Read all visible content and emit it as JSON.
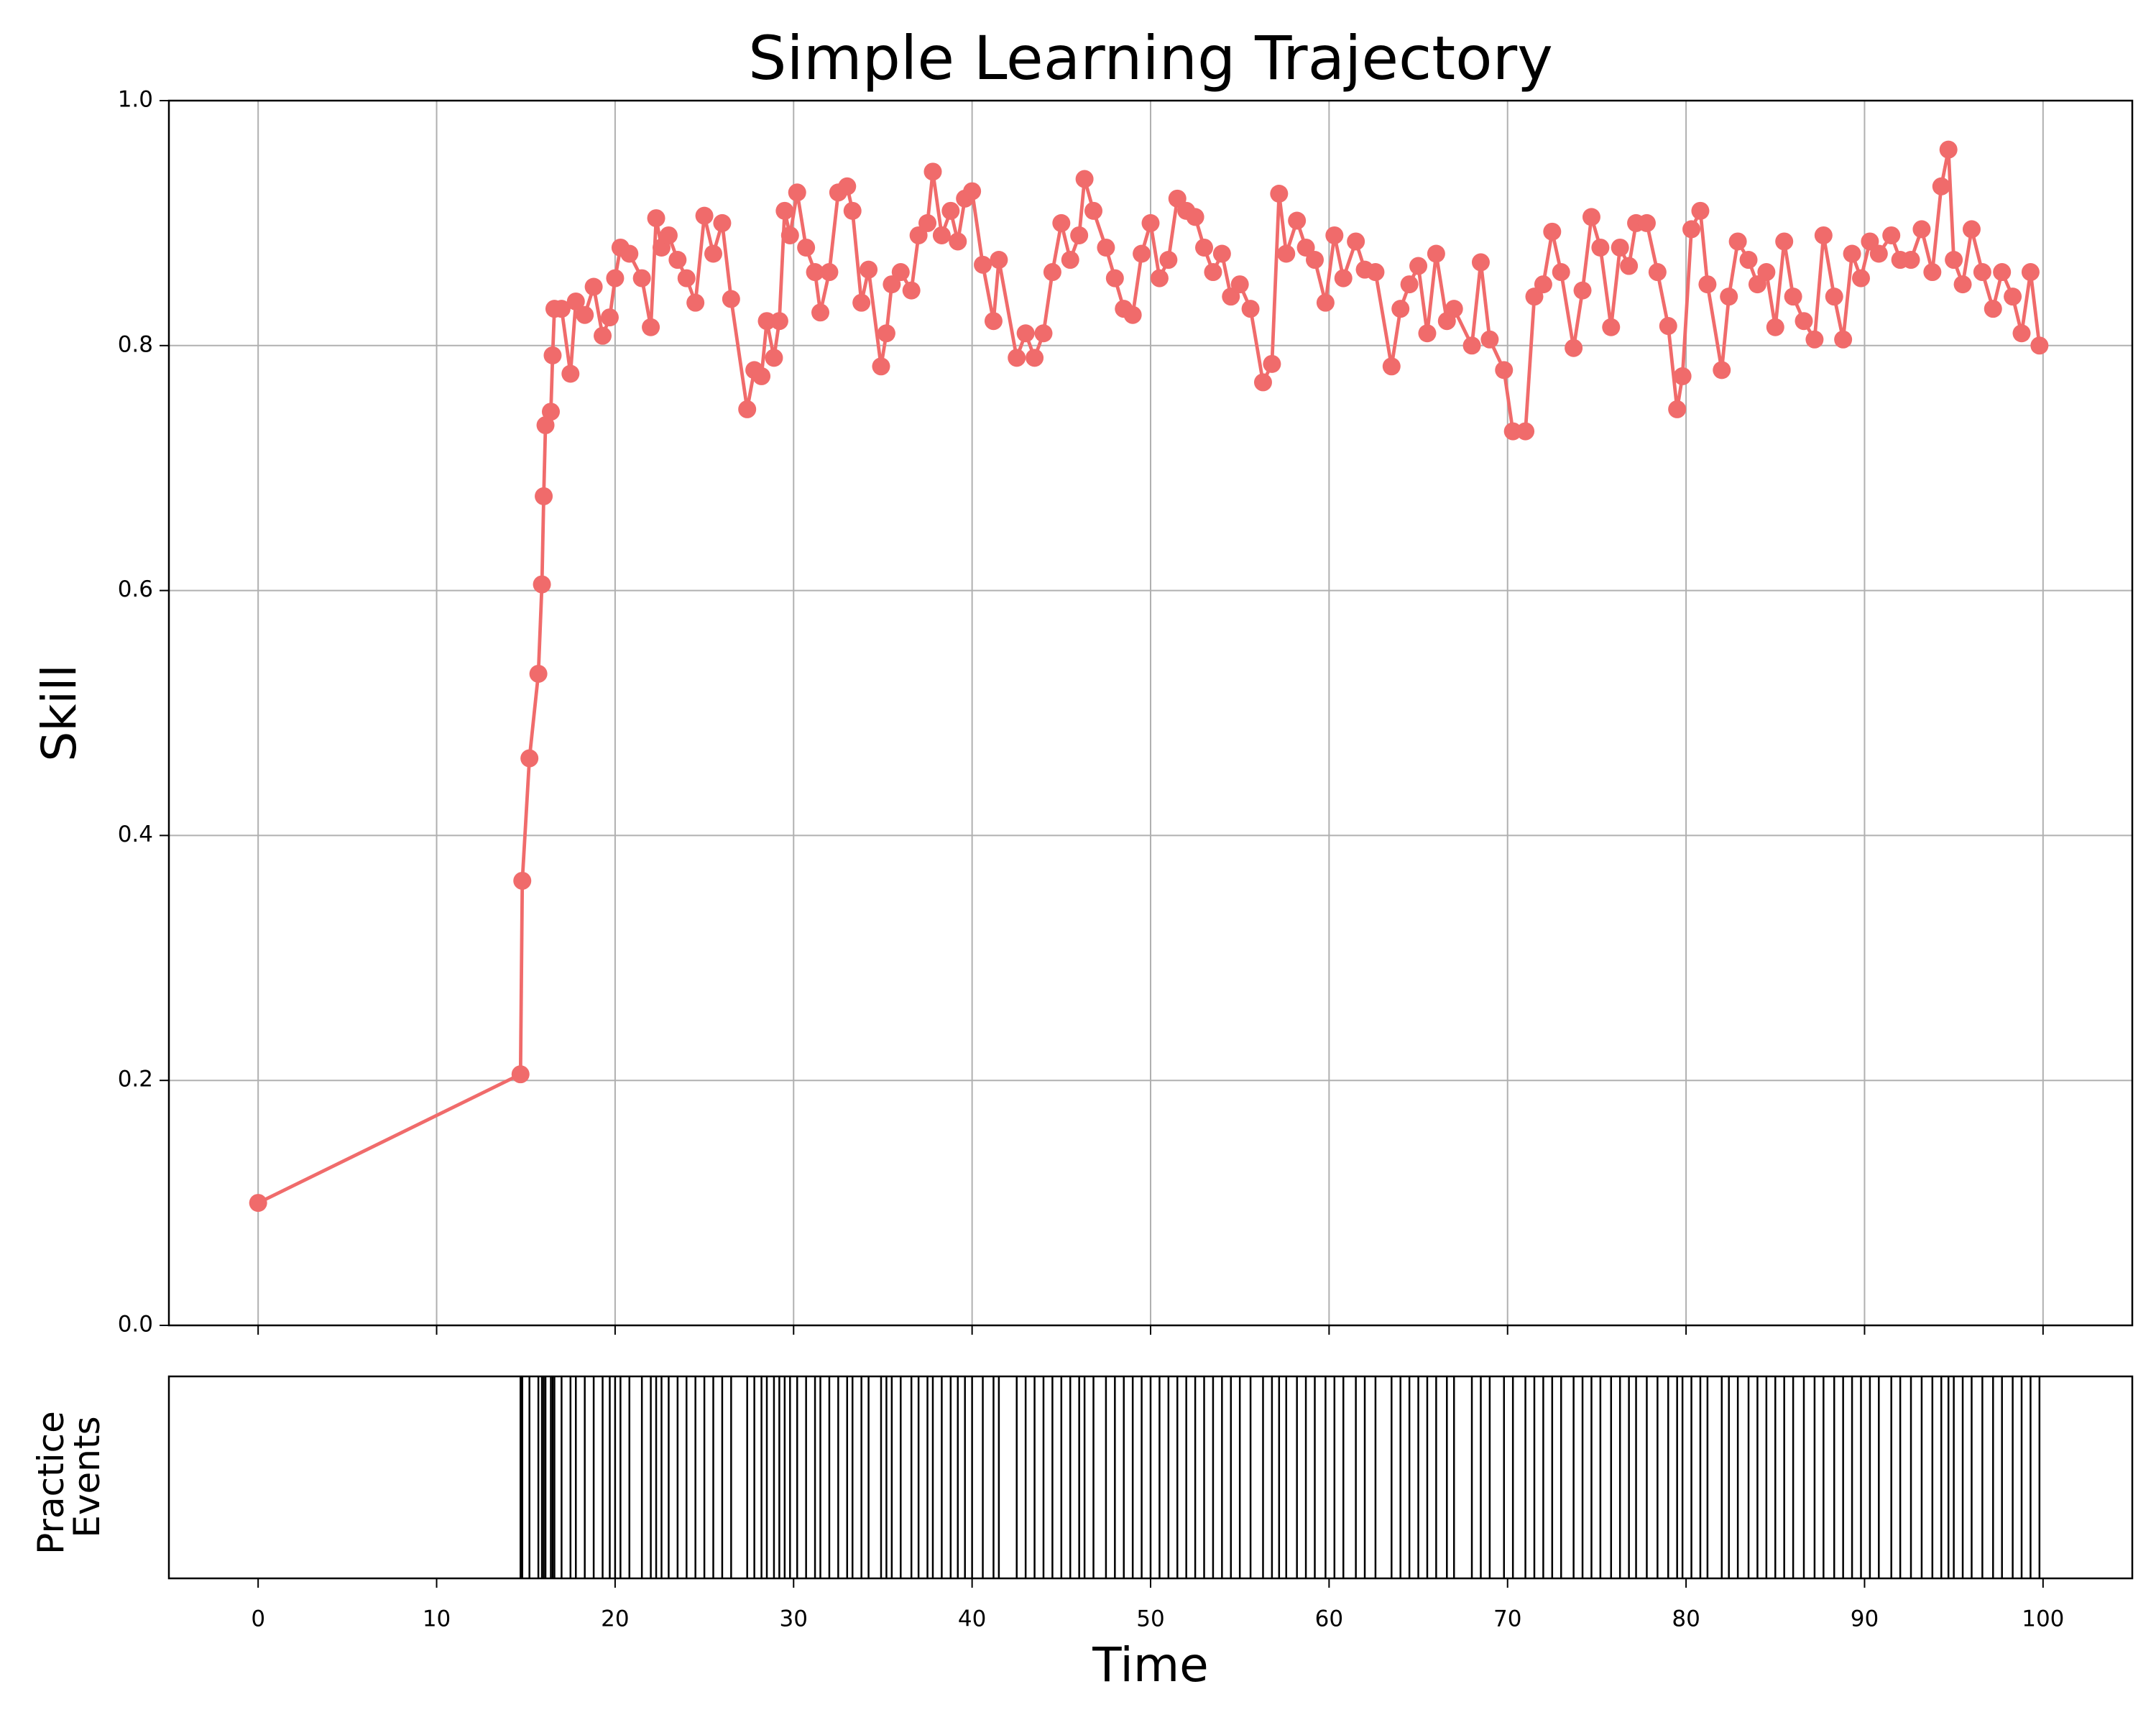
{
  "chart_data": [
    {
      "type": "line",
      "title": "Simple Learning Trajectory",
      "ylabel": "Skill",
      "color": "#f06b6b",
      "grid": true,
      "xlim": [
        -5,
        105
      ],
      "xticks": [
        0,
        10,
        20,
        30,
        40,
        50,
        60,
        70,
        80,
        90,
        100
      ],
      "ylim": [
        0,
        1
      ],
      "yticks": [
        {
          "value": 0,
          "label": "0.0"
        },
        0.2,
        0.4,
        0.6,
        0.8,
        {
          "value": 1,
          "label": "1.0"
        }
      ],
      "x": [
        0,
        14.7,
        14.8,
        15.2,
        15.7,
        15.9,
        16.0,
        16.1,
        16.4,
        16.5,
        16.6,
        17.0,
        17.5,
        17.8,
        18.3,
        18.8,
        19.3,
        19.7,
        20.0,
        20.3,
        20.8,
        21.5,
        22.0,
        22.3,
        22.6,
        23.0,
        23.5,
        24.0,
        24.5,
        25.0,
        25.5,
        26.0,
        26.5,
        27.4,
        27.8,
        28.2,
        28.5,
        28.9,
        29.2,
        29.5,
        29.8,
        30.2,
        30.7,
        31.2,
        31.5,
        32.0,
        32.5,
        33.0,
        33.3,
        33.8,
        34.2,
        34.9,
        35.2,
        35.5,
        36.0,
        36.6,
        37.0,
        37.5,
        37.8,
        38.3,
        38.8,
        39.2,
        39.6,
        40.0,
        40.6,
        41.2,
        41.5,
        42.5,
        43.0,
        43.5,
        44.0,
        44.5,
        45.0,
        45.5,
        46.0,
        46.3,
        46.8,
        47.5,
        48.0,
        48.5,
        49.0,
        49.5,
        50.0,
        50.5,
        51.0,
        51.5,
        52.0,
        52.5,
        53.0,
        53.5,
        54.0,
        54.5,
        55.0,
        55.6,
        56.3,
        56.8,
        57.2,
        57.6,
        58.2,
        58.7,
        59.2,
        59.8,
        60.3,
        60.8,
        61.5,
        62.0,
        62.6,
        63.5,
        64.0,
        64.5,
        65.0,
        65.5,
        66.0,
        66.6,
        67.0,
        68.0,
        68.5,
        69.0,
        69.8,
        70.3,
        71.0,
        71.5,
        72.0,
        72.5,
        73.0,
        73.7,
        74.2,
        74.7,
        75.2,
        75.8,
        76.3,
        76.8,
        77.2,
        77.8,
        78.4,
        79.0,
        79.5,
        79.8,
        80.3,
        80.8,
        81.2,
        82.0,
        82.4,
        82.9,
        83.5,
        84.0,
        84.5,
        85.0,
        85.5,
        86.0,
        86.6,
        87.2,
        87.7,
        88.3,
        88.8,
        89.3,
        89.8,
        90.3,
        90.8,
        91.5,
        92.0,
        92.6,
        93.2,
        93.8,
        94.3,
        94.7,
        95.0,
        95.5,
        96.0,
        96.6,
        97.2,
        97.7,
        98.3,
        98.8,
        99.3,
        99.8
      ],
      "values": [
        0.1,
        0.205,
        0.363,
        0.463,
        0.532,
        0.605,
        0.677,
        0.735,
        0.746,
        0.792,
        0.83,
        0.83,
        0.777,
        0.836,
        0.825,
        0.848,
        0.808,
        0.823,
        0.855,
        0.88,
        0.875,
        0.855,
        0.815,
        0.904,
        0.88,
        0.89,
        0.87,
        0.855,
        0.835,
        0.906,
        0.875,
        0.9,
        0.838,
        0.748,
        0.78,
        0.775,
        0.82,
        0.79,
        0.82,
        0.91,
        0.89,
        0.925,
        0.88,
        0.86,
        0.827,
        0.86,
        0.925,
        0.93,
        0.91,
        0.835,
        0.862,
        0.783,
        0.81,
        0.85,
        0.86,
        0.845,
        0.89,
        0.9,
        0.942,
        0.89,
        0.91,
        0.885,
        0.92,
        0.926,
        0.866,
        0.82,
        0.87,
        0.79,
        0.81,
        0.79,
        0.81,
        0.86,
        0.9,
        0.87,
        0.89,
        0.936,
        0.91,
        0.88,
        0.855,
        0.83,
        0.825,
        0.875,
        0.9,
        0.855,
        0.87,
        0.92,
        0.91,
        0.905,
        0.88,
        0.86,
        0.875,
        0.84,
        0.85,
        0.83,
        0.77,
        0.785,
        0.924,
        0.875,
        0.902,
        0.88,
        0.87,
        0.835,
        0.89,
        0.855,
        0.885,
        0.862,
        0.86,
        0.783,
        0.83,
        0.85,
        0.865,
        0.81,
        0.875,
        0.82,
        0.83,
        0.8,
        0.868,
        0.805,
        0.78,
        0.73,
        0.73,
        0.84,
        0.85,
        0.893,
        0.86,
        0.798,
        0.845,
        0.905,
        0.88,
        0.815,
        0.88,
        0.865,
        0.9,
        0.9,
        0.86,
        0.816,
        0.748,
        0.775,
        0.895,
        0.91,
        0.85,
        0.78,
        0.84,
        0.885,
        0.87,
        0.85,
        0.86,
        0.815,
        0.885,
        0.84,
        0.82,
        0.805,
        0.89,
        0.84,
        0.805,
        0.875,
        0.855,
        0.885,
        0.875,
        0.89,
        0.87,
        0.87,
        0.895,
        0.86,
        0.93,
        0.96,
        0.87,
        0.85,
        0.895,
        0.86,
        0.83,
        0.86,
        0.84,
        0.81,
        0.86,
        0.8
      ]
    },
    {
      "type": "eventplot",
      "ylabel": [
        "Practice",
        "Events"
      ],
      "xlabel": "Time",
      "color": "#000000",
      "xlim": [
        -5,
        105
      ],
      "xticks": [
        0,
        10,
        20,
        30,
        40,
        50,
        60,
        70,
        80,
        90,
        100
      ],
      "events": [
        14.7,
        14.8,
        15.2,
        15.7,
        15.9,
        16.0,
        16.1,
        16.4,
        16.5,
        16.6,
        17.0,
        17.5,
        17.8,
        18.3,
        18.8,
        19.3,
        19.7,
        20.0,
        20.3,
        20.8,
        21.5,
        22.0,
        22.3,
        22.6,
        23.0,
        23.5,
        24.0,
        24.5,
        25.0,
        25.5,
        26.0,
        26.5,
        27.4,
        27.8,
        28.2,
        28.5,
        28.9,
        29.2,
        29.5,
        29.8,
        30.2,
        30.7,
        31.2,
        31.5,
        32.0,
        32.5,
        33.0,
        33.3,
        33.8,
        34.2,
        34.9,
        35.2,
        35.5,
        36.0,
        36.6,
        37.0,
        37.5,
        37.8,
        38.3,
        38.8,
        39.2,
        39.6,
        40.0,
        40.6,
        41.2,
        41.5,
        42.5,
        43.0,
        43.5,
        44.0,
        44.5,
        45.0,
        45.5,
        46.0,
        46.3,
        46.8,
        47.5,
        48.0,
        48.5,
        49.0,
        49.5,
        50.0,
        50.5,
        51.0,
        51.5,
        52.0,
        52.5,
        53.0,
        53.5,
        54.0,
        54.5,
        55.0,
        55.6,
        56.3,
        56.8,
        57.2,
        57.6,
        58.2,
        58.7,
        59.2,
        59.8,
        60.3,
        60.8,
        61.5,
        62.0,
        62.6,
        63.5,
        64.0,
        64.5,
        65.0,
        65.5,
        66.0,
        66.6,
        67.0,
        68.0,
        68.5,
        69.0,
        69.8,
        70.3,
        71.0,
        71.5,
        72.0,
        72.5,
        73.0,
        73.7,
        74.2,
        74.7,
        75.2,
        75.8,
        76.3,
        76.8,
        77.2,
        77.8,
        78.4,
        79.0,
        79.5,
        79.8,
        80.3,
        80.8,
        81.2,
        82.0,
        82.4,
        82.9,
        83.5,
        84.0,
        84.5,
        85.0,
        85.5,
        86.0,
        86.6,
        87.2,
        87.7,
        88.3,
        88.8,
        89.3,
        89.8,
        90.3,
        90.8,
        91.5,
        92.0,
        92.6,
        93.2,
        93.8,
        94.3,
        94.7,
        95.0,
        95.5,
        96.0,
        96.6,
        97.2,
        97.7,
        98.3,
        98.8,
        99.3,
        99.8
      ]
    }
  ]
}
